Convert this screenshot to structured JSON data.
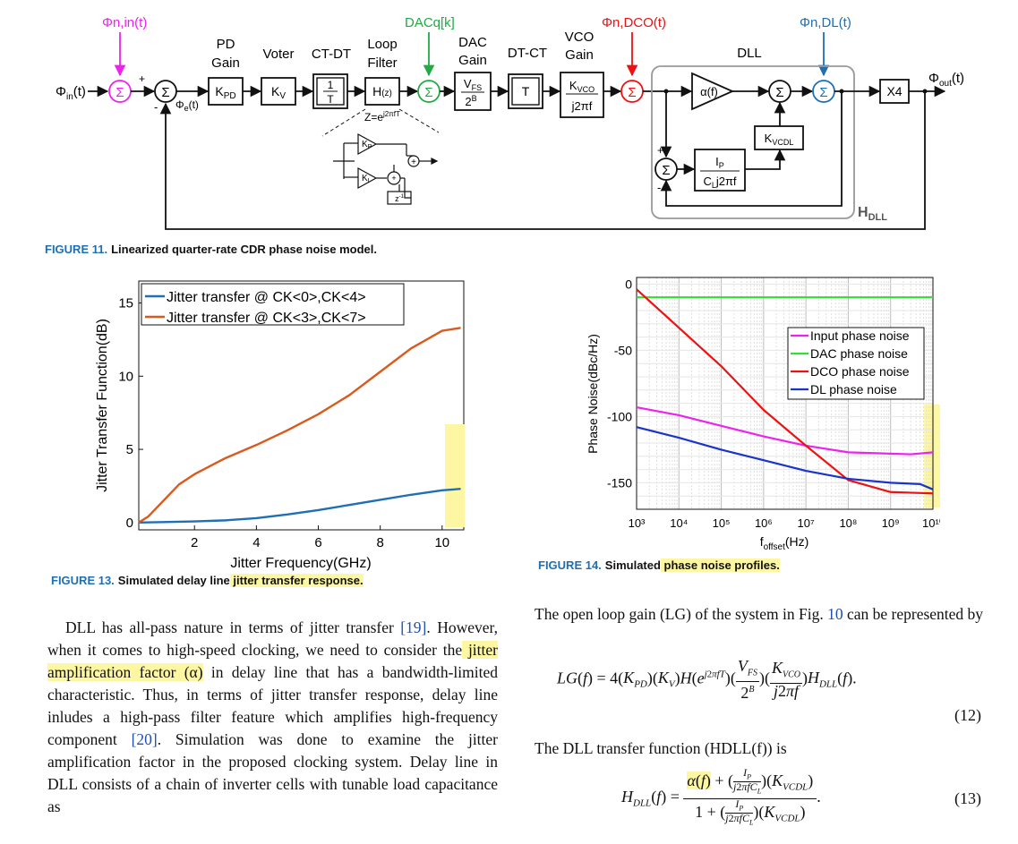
{
  "figure11": {
    "caption_num": "FIGURE 11.",
    "caption_text": "Linearized quarter-rate CDR phase noise model.",
    "labels": {
      "phi_n_in": "Φn,in(t)",
      "dacq": "DACq[k]",
      "phi_n_dco": "Φn,DCO(t)",
      "phi_n_dl": "Φn,DL(t)",
      "phi_in": "Φin(t)",
      "phi_out": "Φout(t)",
      "phi_e": "Φe(t)",
      "pd_gain": "PD Gain",
      "voter": "Voter",
      "ct_dt": "CT-DT",
      "loop_filter": "Loop Filter",
      "dac_gain": "DAC Gain",
      "dt_ct": "DT-CT",
      "vco_gain": "VCO Gain",
      "dll": "DLL",
      "hdll": "HDLL",
      "kpd": "KPD",
      "kv": "KV",
      "hz": "H(z)",
      "zeq": "Z=ej2πfT",
      "vfs": "VFS",
      "twob": "2B",
      "t": "T",
      "kvco": "KVCO",
      "j2pif": "j2πf",
      "alpha": "α(f)",
      "kvcdl": "KVCDL",
      "ip": "IP",
      "clj2pif": "CLj2πf",
      "x4": "X4",
      "kp": "Kp",
      "ki": "Ki",
      "zinv": "z-1",
      "one": "1",
      "plus": "+",
      "minus": "-"
    }
  },
  "figure13": {
    "caption_num": "FIGURE 13.",
    "caption_pre": "Simulated delay line",
    "caption_hl": " jitter transfer response.",
    "chart_data": {
      "type": "line",
      "xlabel": "Jitter Frequency(GHz)",
      "ylabel": "Jitter Transfer Function(dB)",
      "xlim": [
        0.2,
        10.7
      ],
      "ylim": [
        -0.5,
        16.5
      ],
      "xticks": [
        2,
        4,
        6,
        8,
        10
      ],
      "yticks": [
        0,
        5,
        10,
        15
      ],
      "legend_position": "top-left",
      "series": [
        {
          "name": "Jitter transfer @ CK<0>,CK<4>",
          "color": "#1f6fb4",
          "x": [
            0.2,
            1,
            2,
            3,
            4,
            5,
            6,
            7,
            8,
            9,
            10,
            10.6
          ],
          "y": [
            0,
            0.03,
            0.08,
            0.15,
            0.3,
            0.55,
            0.85,
            1.2,
            1.55,
            1.9,
            2.2,
            2.3
          ]
        },
        {
          "name": "Jitter transfer @ CK<3>,CK<7>",
          "color": "#d95a1e",
          "x": [
            0.2,
            0.5,
            1,
            1.5,
            2,
            3,
            4,
            5,
            6,
            7,
            8,
            9,
            10,
            10.6
          ],
          "y": [
            0,
            0.4,
            1.5,
            2.6,
            3.3,
            4.4,
            5.3,
            6.3,
            7.4,
            8.7,
            10.3,
            11.9,
            13.1,
            13.3
          ]
        }
      ]
    }
  },
  "figure14": {
    "caption_num": "FIGURE 14.",
    "caption_pre": "Simulated",
    "caption_hl": " phase noise profiles.",
    "chart_data": {
      "type": "line",
      "xlabel": "foffset(Hz)",
      "ylabel": "Phase Noise(dBc/Hz)",
      "xscale": "log",
      "xlim": [
        1000,
        10000000000
      ],
      "ylim": [
        -170,
        5
      ],
      "xticks": [
        "10³",
        "10⁴",
        "10⁵",
        "10⁶",
        "10⁷",
        "10⁸",
        "10⁹",
        "10¹⁰"
      ],
      "yticks": [
        0,
        -50,
        -100,
        -150
      ],
      "grid": true,
      "legend_position": "right",
      "series": [
        {
          "name": "Input phase noise",
          "color": "#ee22ee",
          "x": [
            1000,
            10000,
            100000,
            1000000,
            10000000,
            100000000,
            1000000000,
            3000000000,
            10000000000
          ],
          "y": [
            -93,
            -99,
            -107,
            -115,
            -122,
            -127,
            -128,
            -128.5,
            -127
          ]
        },
        {
          "name": "DAC phase noise",
          "color": "#33dd33",
          "x": [
            1000,
            10000000000
          ],
          "y": [
            -10,
            -10
          ]
        },
        {
          "name": "DCO phase noise",
          "color": "#ee1111",
          "x": [
            1000,
            10000,
            100000,
            1000000,
            10000000,
            100000000,
            1000000000,
            10000000000
          ],
          "y": [
            -4,
            -33,
            -62,
            -95,
            -122,
            -148,
            -157,
            -158
          ]
        },
        {
          "name": "DL phase noise",
          "color": "#1a33cc",
          "x": [
            1000,
            10000,
            100000,
            1000000,
            10000000,
            100000000,
            1000000000,
            5000000000,
            10000000000
          ],
          "y": [
            -108,
            -116,
            -125,
            -133,
            -141,
            -147,
            -150,
            -151,
            -155
          ]
        }
      ]
    }
  },
  "text_left": {
    "p1_a": "DLL has all-pass nature in terms of jitter transfer ",
    "p1_ref1": "[19]",
    "p1_b": ". However, when it comes to high-speed clocking, we need to consider the",
    "p1_hl": " jitter amplification factor (α)",
    "p1_c": " in delay line that has a bandwidth-limited characteristic. Thus, in terms of jitter transfer response, delay line inludes a high-pass filter feature which amplifies high-frequency component ",
    "p1_ref2": "[20]",
    "p1_d": ". Simulation was done to examine the jitter amplification factor in the proposed clocking system. Delay line in DLL consists of a chain of inverter cells with tunable load capacitance as"
  },
  "text_right": {
    "p1_a": "The open loop gain (LG) of the system in Fig. ",
    "p1_ref": "10",
    "p1_b": " can be represented by",
    "eq12_num": "(12)",
    "p2": "The DLL transfer function (HDLL(f)) is",
    "eq13_num": "(13)"
  }
}
